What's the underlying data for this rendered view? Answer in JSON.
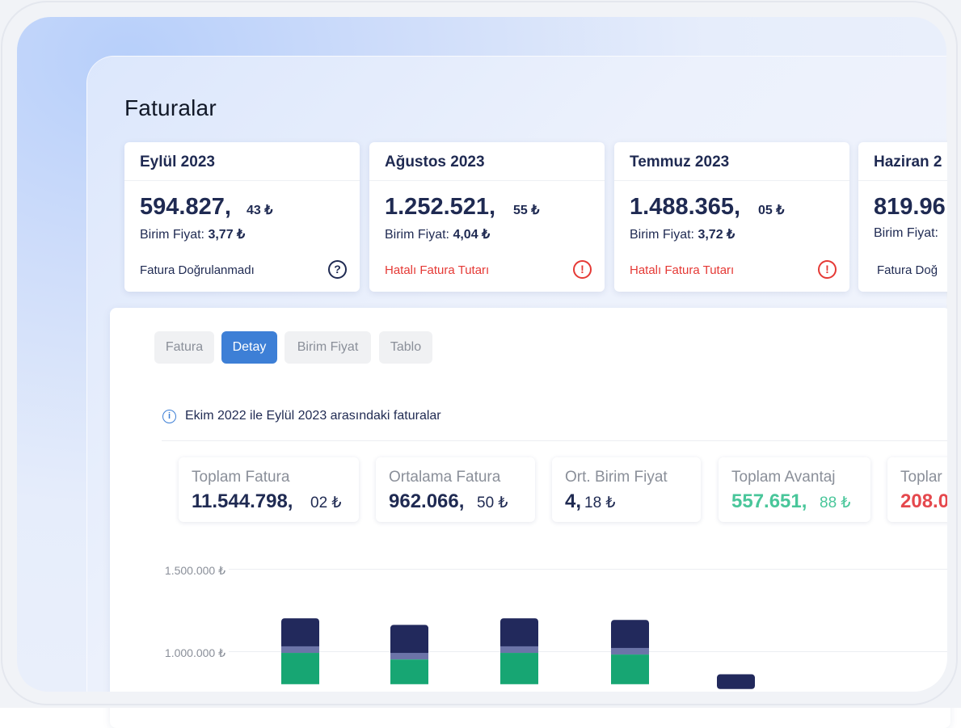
{
  "page": {
    "title": "Faturalar"
  },
  "cards": [
    {
      "month": "Eylül 2023",
      "amount": "594.827,",
      "decimals": "43 ₺",
      "unit_label": "Birim Fiyat:",
      "unit_value": "3,77 ₺",
      "status": "Fatura Doğrulanmadı",
      "status_icon": "question-icon",
      "status_type": "warning"
    },
    {
      "month": "Ağustos 2023",
      "amount": "1.252.521,",
      "decimals": "55 ₺",
      "unit_label": "Birim Fiyat:",
      "unit_value": "4,04 ₺",
      "status": "Hatalı Fatura Tutarı",
      "status_icon": "error-icon",
      "status_type": "error"
    },
    {
      "month": "Temmuz 2023",
      "amount": "1.488.365,",
      "decimals": "05 ₺",
      "unit_label": "Birim Fiyat:",
      "unit_value": "3,72 ₺",
      "status": "Hatalı Fatura Tutarı",
      "status_icon": "error-icon",
      "status_type": "error"
    },
    {
      "month": "Haziran 2",
      "amount": "819.96",
      "unit_label": "Birim Fiyat:",
      "status": "Fatura Doğ"
    }
  ],
  "tabs": [
    {
      "label": "Fatura",
      "active": false
    },
    {
      "label": "Detay",
      "active": true
    },
    {
      "label": "Birim Fiyat",
      "active": false
    },
    {
      "label": "Tablo",
      "active": false
    }
  ],
  "info": {
    "text": "Ekim 2022 ile Eylül 2023 arasındaki faturalar",
    "icon": "info-icon"
  },
  "stats": [
    {
      "label": "Toplam Fatura",
      "int": "11.544.798,",
      "dec": "02 ₺",
      "tone": "default"
    },
    {
      "label": "Ortalama Fatura",
      "int": "962.066,",
      "dec": "50 ₺",
      "tone": "default"
    },
    {
      "label": "Ort. Birim Fiyat",
      "int": "4,",
      "dec": "18  ₺",
      "tone": "default"
    },
    {
      "label": "Toplam Avantaj",
      "int": "557.651,",
      "dec": "88 ₺",
      "tone": "positive"
    },
    {
      "label": "Toplar",
      "int": "208.0",
      "tone": "negative"
    }
  ],
  "colors": {
    "accent": "#3d7fd6",
    "navy": "#1f2a52",
    "error": "#e53935",
    "positive": "#49c69a",
    "bar_base": "#22295c",
    "bar_mid": "#6c74a8",
    "bar_green": "#17a673"
  },
  "chart_data": {
    "type": "bar",
    "stacked": true,
    "ytick_labels": [
      "1.500.000 ₺",
      "1.000.000 ₺"
    ],
    "ylim_visible": [
      800000,
      1500000
    ],
    "note": "only upper portion of chart is visible; bars are cropped at the bottom",
    "bars": [
      {
        "total": 1200000,
        "segments": [
          {
            "color": "bar_base",
            "from": 1030000,
            "to": 1200000
          },
          {
            "color": "bar_mid",
            "from": 990000,
            "to": 1030000
          },
          {
            "color": "bar_green",
            "from": 800000,
            "to": 990000
          }
        ]
      },
      {
        "total": 1160000,
        "segments": [
          {
            "color": "bar_base",
            "from": 990000,
            "to": 1160000
          },
          {
            "color": "bar_mid",
            "from": 950000,
            "to": 990000
          },
          {
            "color": "bar_green",
            "from": 800000,
            "to": 950000
          }
        ]
      },
      {
        "total": 1200000,
        "segments": [
          {
            "color": "bar_base",
            "from": 1030000,
            "to": 1200000
          },
          {
            "color": "bar_mid",
            "from": 990000,
            "to": 1030000
          },
          {
            "color": "bar_green",
            "from": 800000,
            "to": 990000
          }
        ]
      },
      {
        "total": 1190000,
        "segments": [
          {
            "color": "bar_base",
            "from": 1020000,
            "to": 1190000
          },
          {
            "color": "bar_mid",
            "from": 980000,
            "to": 1020000
          },
          {
            "color": "bar_green",
            "from": 800000,
            "to": 980000
          }
        ]
      },
      {
        "total": 860000,
        "segments": [
          {
            "color": "bar_base",
            "from": 800000,
            "to": 860000
          }
        ]
      }
    ]
  }
}
